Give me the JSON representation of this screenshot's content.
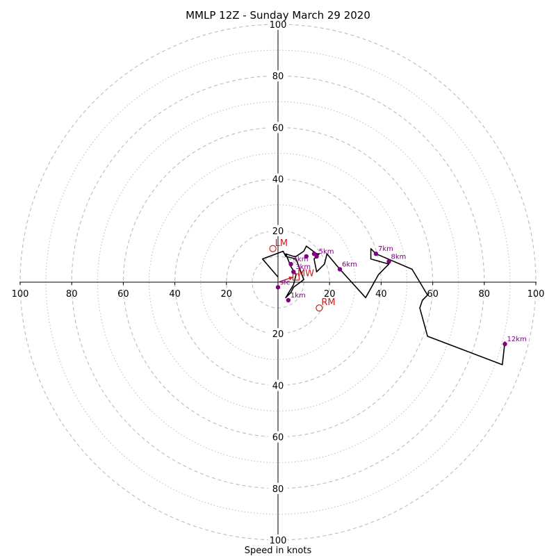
{
  "chart_data": {
    "type": "hodograph",
    "title": "MMLP 12Z - Sunday March 29 2020",
    "xlabel": "Speed in knots",
    "xlim": [
      -100,
      100
    ],
    "ylim": [
      -100,
      100
    ],
    "ticks": [
      {
        "value": 100,
        "label": "100"
      },
      {
        "value": 80,
        "label": "80"
      },
      {
        "value": 60,
        "label": "60"
      },
      {
        "value": 40,
        "label": "40"
      },
      {
        "value": 20,
        "label": "20"
      }
    ],
    "rings": {
      "dashed": [
        10,
        20,
        40,
        60,
        80,
        100
      ],
      "dotted": [
        30,
        50,
        70,
        90
      ]
    },
    "colors": {
      "trace": "#000000",
      "height_markers": "#800080",
      "storm_motion": "#cc1f1f",
      "ring": "#bbbbbb",
      "axis": "#000000"
    },
    "trace": [
      [
        0,
        2
      ],
      [
        -6,
        9
      ],
      [
        2,
        12
      ],
      [
        3,
        10
      ],
      [
        7,
        9
      ],
      [
        10,
        1
      ],
      [
        6,
        -2
      ],
      [
        5,
        -4
      ],
      [
        3,
        -6
      ],
      [
        6,
        -1
      ],
      [
        7,
        3
      ],
      [
        5,
        6
      ],
      [
        3,
        11
      ],
      [
        6,
        10
      ],
      [
        7,
        10
      ],
      [
        10,
        12
      ],
      [
        11,
        14
      ],
      [
        15,
        11
      ],
      [
        16,
        11
      ],
      [
        14,
        9
      ],
      [
        15,
        4
      ],
      [
        18,
        7
      ],
      [
        19,
        11
      ],
      [
        24,
        5
      ],
      [
        34,
        -6
      ],
      [
        39,
        3
      ],
      [
        43,
        7
      ],
      [
        36,
        9
      ],
      [
        36,
        13
      ],
      [
        38,
        11
      ],
      [
        52,
        5
      ],
      [
        58,
        -5
      ],
      [
        56,
        -7
      ],
      [
        55,
        -10
      ],
      [
        58,
        -21
      ],
      [
        87,
        -32
      ],
      [
        88,
        -23
      ]
    ],
    "height_markers": [
      {
        "label": "sfc",
        "u": 0,
        "v": -2
      },
      {
        "label": "1km",
        "u": 4,
        "v": -7
      },
      {
        "label": "3km",
        "u": 6,
        "v": 4
      },
      {
        "label": "4km",
        "u": 5,
        "v": 7
      },
      {
        "label": "",
        "u": 11,
        "v": 10
      },
      {
        "label": "5km",
        "u": 15,
        "v": 10
      },
      {
        "label": "",
        "u": 14,
        "v": 11
      },
      {
        "label": "6km",
        "u": 24,
        "v": 5
      },
      {
        "label": "7km",
        "u": 38,
        "v": 11
      },
      {
        "label": "8km",
        "u": 43,
        "v": 8
      },
      {
        "label": "12km",
        "u": 88,
        "v": -24
      }
    ],
    "storm_motion": {
      "LM": {
        "label": "LM",
        "u": -2,
        "v": 13
      },
      "RM": {
        "label": "RM",
        "u": 16,
        "v": -10
      },
      "MW": {
        "label": "MW",
        "u": 7,
        "v": 2
      }
    },
    "shear_vector": {
      "from": [
        0,
        0
      ],
      "to": [
        6,
        2
      ]
    }
  }
}
